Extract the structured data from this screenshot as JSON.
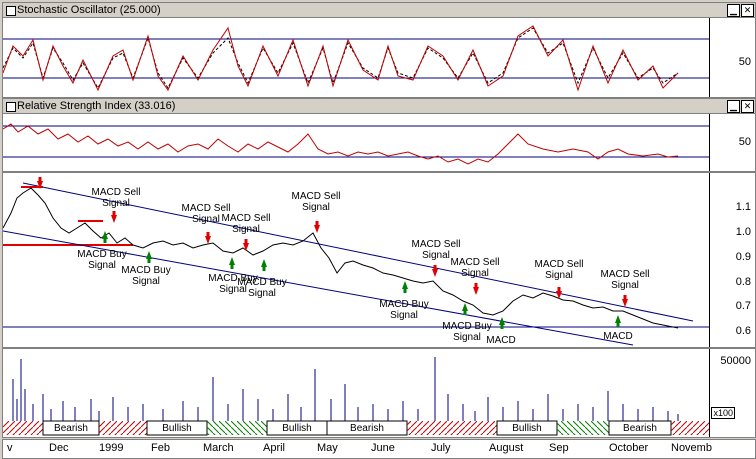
{
  "panels": {
    "stochastic": {
      "title": "Stochastic Oscillator (25.000)",
      "scale": [
        "50"
      ]
    },
    "rsi": {
      "title": "Relative Strength Index (33.016)",
      "scale": [
        "50"
      ]
    },
    "price": {
      "scale": [
        "1.1",
        "1.0",
        "0.9",
        "0.8",
        "0.7",
        "0.6"
      ]
    },
    "volume": {
      "scale": [
        "50000"
      ],
      "multiplier": "x100"
    }
  },
  "window_buttons": {
    "minimize": "▁",
    "close": "✕"
  },
  "signals": [
    {
      "text": "MACD Sell Signal"
    },
    {
      "text": "MACD Buy Signal"
    },
    {
      "text": "MACD Buy Signal"
    },
    {
      "text": "MACD Sell Signal"
    },
    {
      "text": "MACD Sell Signal"
    },
    {
      "text": "MACD Buy Signal"
    },
    {
      "text": "MACD Buy Signal"
    },
    {
      "text": "MACD Sell Signal"
    },
    {
      "text": "MACD Sell Signal"
    },
    {
      "text": "MACD Buy Signal"
    },
    {
      "text": "MACD Sell Signal"
    },
    {
      "text": "MACD Buy Signal"
    },
    {
      "text": "MACD"
    },
    {
      "text": "MACD Sell Signal"
    },
    {
      "text": "MACD Sell Signal"
    },
    {
      "text": "MACD"
    }
  ],
  "trend_bands": [
    "Bearish",
    "Bullish",
    "Bullish",
    "Bearish",
    "Bullish",
    "Bearish"
  ],
  "x_labels": [
    "v",
    "Dec",
    "1999",
    "Feb",
    "March",
    "April",
    "May",
    "June",
    "July",
    "August",
    "Sep",
    "October",
    "Novemb"
  ]
}
